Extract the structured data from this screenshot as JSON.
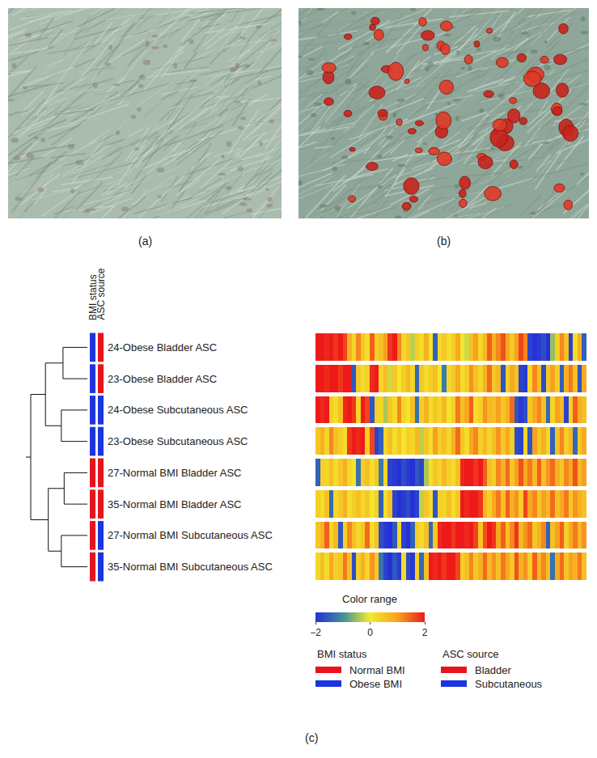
{
  "panels": [
    {
      "label": "(a)"
    },
    {
      "label": "(b)"
    }
  ],
  "chart_data": {
    "type": "heatmap",
    "label": "(c)",
    "rows": [
      "24-Obese Bladder ASC",
      "23-Obese Bladder ASC",
      "24-Obese Subcutaneous ASC",
      "23-Obese Subcutaneous ASC",
      "27-Normal BMI Bladder ASC",
      "35-Normal BMI Bladder ASC",
      "27-Normal BMI Subcutaneous ASC",
      "35-Normal BMI Subcutaneous ASC"
    ],
    "cells": [
      [
        2,
        2,
        1.9,
        2,
        1.8,
        2,
        1.7,
        0.8,
        0.3,
        1.2,
        0.5,
        0.2,
        1.5,
        0.4,
        0.6,
        1,
        1.8,
        2,
        1.2,
        0.3,
        0.5,
        -0.3,
        0.4,
        0.2,
        0.8,
        0.1,
        -1.5,
        0.3,
        0.5,
        0.2,
        0.4,
        0.9,
        0.1,
        -0.2,
        0.6,
        1,
        0.3,
        0.7,
        1.5,
        0.8,
        1.2,
        1.6,
        0.9,
        0.5,
        1,
        1.7,
        1.2,
        -1.8,
        -2,
        -1.9,
        -1.7,
        -2,
        -0.5,
        0.4,
        1.2,
        0.6,
        -1.8,
        0.2,
        0.8,
        -1.5
      ],
      [
        2,
        2,
        1.9,
        2,
        2,
        1.8,
        2,
        2,
        -1.6,
        0.5,
        0.2,
        0.4,
        1.9,
        2,
        0.3,
        0.6,
        -0.2,
        0.5,
        0.1,
        0.4,
        0.7,
        0.3,
        -1.4,
        0.5,
        0.2,
        0.4,
        0.6,
        0.1,
        -1.2,
        0.3,
        0.5,
        0.9,
        0.2,
        0.4,
        1.1,
        0.6,
        0.3,
        0.8,
        1.4,
        0.5,
        0.7,
        -1.6,
        0.4,
        0.9,
        0.6,
        -1.8,
        -1.9,
        0.3,
        1.2,
        0.6,
        -1.7,
        0.5,
        1,
        0.4,
        -1.5,
        0.8,
        1.3,
        0.6,
        -1.6,
        0.9
      ],
      [
        2,
        1.9,
        2,
        0.4,
        0.2,
        0.6,
        1.9,
        2,
        1.8,
        0.3,
        2,
        1.7,
        -1.6,
        0.4,
        0.3,
        -0.4,
        0.5,
        0.2,
        1.2,
        0.3,
        0.1,
        0.6,
        -1.3,
        0.4,
        0.8,
        0.2,
        0.5,
        0.3,
        0.7,
        0.1,
        0.4,
        1.3,
        0.6,
        0.9,
        1.5,
        0.2,
        0.4,
        1.1,
        0.7,
        0.6,
        1,
        0.5,
        0.8,
        1.4,
        -1.6,
        -1.9,
        -1.7,
        0.5,
        0.9,
        1.2,
        0.6,
        -1.4,
        0.3,
        1,
        0.7,
        -1.8,
        0.4,
        1.5,
        0.8,
        0.6
      ],
      [
        0.5,
        0.8,
        0.3,
        1.2,
        0.6,
        0.4,
        0.2,
        1.8,
        2,
        1.9,
        2,
        0.4,
        1.7,
        -1.8,
        -1.5,
        0.3,
        0.6,
        0.2,
        0.5,
        0.1,
        0.4,
        0.3,
        0.7,
        -0.3,
        0.5,
        0.2,
        1,
        0.4,
        0.6,
        0.3,
        0.8,
        1.4,
        0.5,
        0.2,
        0.9,
        1.2,
        0.4,
        0.7,
        0.3,
        0.6,
        1.1,
        0.5,
        0.9,
        0.4,
        -1.7,
        -1.8,
        0.3,
        -1.6,
        1,
        0.5,
        0.8,
        0.3,
        -1.5,
        0.6,
        1.2,
        0.4,
        0.7,
        -1.4,
        0.5,
        0.9
      ],
      [
        -1.5,
        0.4,
        0.3,
        0.6,
        0.2,
        0.5,
        0.8,
        0.3,
        0.1,
        -1.3,
        0.4,
        0.6,
        0.2,
        0.5,
        -1.2,
        0.3,
        -1.8,
        -1.9,
        -2,
        -1.7,
        -1.9,
        -2,
        -1.6,
        -1.8,
        -0.4,
        0.2,
        0.5,
        0.3,
        0.7,
        0.4,
        0.2,
        0.6,
        1.9,
        2,
        2,
        1.8,
        2,
        1.5,
        0.6,
        0.4,
        1.2,
        0.8,
        1.4,
        0.5,
        1,
        1.6,
        0.9,
        1.3,
        0.7,
        1.5,
        0.6,
        1.1,
        1.4,
        0.8,
        0.5,
        1.2,
        0.9,
        1.6,
        0.7,
        1
      ],
      [
        0.4,
        0.2,
        0.6,
        -1.4,
        0.3,
        0.5,
        0.8,
        0.2,
        0.4,
        0.6,
        0.3,
        0.5,
        0.1,
        0.4,
        -1.5,
        0.2,
        0.6,
        -1.8,
        -2,
        -1.9,
        -1.7,
        -2,
        -1.8,
        -0.3,
        0.5,
        0.2,
        -1.6,
        0.4,
        0.3,
        0.6,
        0.2,
        0.5,
        2,
        1.9,
        2,
        2,
        1.8,
        0.7,
        0.4,
        0.9,
        1.3,
        0.6,
        1.5,
        0.8,
        1.1,
        0.4,
        1.7,
        0.9,
        1.2,
        0.5,
        1,
        0.7,
        1.4,
        0.6,
        0.9,
        1.3,
        0.5,
        1.1,
        0.8,
        0.6
      ],
      [
        0.5,
        0.8,
        1.5,
        0.3,
        0.7,
        -1.6,
        0.4,
        1.2,
        0.6,
        0.3,
        0.5,
        1.4,
        0.2,
        0.6,
        -1.7,
        -1.9,
        -2,
        -1.6,
        0.3,
        -1.8,
        -2,
        -1.5,
        0.4,
        0.2,
        0.6,
        -1.4,
        0.5,
        1.9,
        2,
        2,
        1.8,
        2,
        2,
        1.9,
        2,
        1.7,
        0.5,
        1.6,
        2,
        1.8,
        0.9,
        1.5,
        0.6,
        1.2,
        1.8,
        0.7,
        1.1,
        1.4,
        0.5,
        0.8,
        1.2,
        -1.5,
        0.6,
        1,
        1.5,
        0.4,
        0.9,
        1.3,
        0.7,
        1.1
      ],
      [
        0.3,
        0.6,
        0.2,
        0.9,
        0.4,
        0.5,
        1.3,
        0.6,
        -1.7,
        0.4,
        0.8,
        0.3,
        1.1,
        0.5,
        -1.3,
        -1.8,
        -2,
        -1.6,
        -1.9,
        0.2,
        -1.7,
        -1.9,
        0.4,
        -1.4,
        0.6,
        2,
        1.9,
        2,
        1.8,
        2,
        2,
        1.7,
        0.4,
        0.6,
        1.2,
        0.5,
        0.8,
        1.4,
        0.7,
        1.1,
        0.6,
        1.3,
        0.9,
        0.5,
        1.6,
        0.8,
        1.1,
        0.4,
        1.5,
        0.7,
        1.2,
        0.6,
        -1.3,
        0.9,
        1.4,
        0.5,
        1,
        0.8,
        1.3,
        0.6
      ]
    ],
    "colorbar": {
      "title": "Color range",
      "range": [
        -2,
        2
      ],
      "ticks": [
        {
          "value": -2,
          "label": "−2"
        },
        0,
        2
      ]
    },
    "annotation_tracks": [
      {
        "title": "BMI status",
        "values": [
          "Obese BMI",
          "Obese BMI",
          "Obese BMI",
          "Obese BMI",
          "Normal BMI",
          "Normal BMI",
          "Normal BMI",
          "Normal BMI"
        ],
        "legend": [
          {
            "name": "Normal BMI",
            "color": "#e8141c"
          },
          {
            "name": "Obese BMI",
            "color": "#1c35e0"
          }
        ]
      },
      {
        "title": "ASC source",
        "values": [
          "Bladder",
          "Bladder",
          "Subcutaneous",
          "Subcutaneous",
          "Bladder",
          "Bladder",
          "Subcutaneous",
          "Subcutaneous"
        ],
        "legend": [
          {
            "name": "Bladder",
            "color": "#e8141c"
          },
          {
            "name": "Subcutaneous",
            "color": "#1c35e0"
          }
        ]
      }
    ],
    "dendrogram": [
      {
        "left": 0,
        "right": 1,
        "height": 0.43
      },
      {
        "left": 2,
        "right": 3,
        "height": 0.46
      },
      {
        "left": 8,
        "right": 9,
        "height": 0.74
      },
      {
        "left": 4,
        "right": 5,
        "height": 0.41
      },
      {
        "left": 6,
        "right": 7,
        "height": 0.46
      },
      {
        "left": 11,
        "right": 12,
        "height": 0.69
      },
      {
        "left": 10,
        "right": 13,
        "height": 1.0
      }
    ]
  }
}
